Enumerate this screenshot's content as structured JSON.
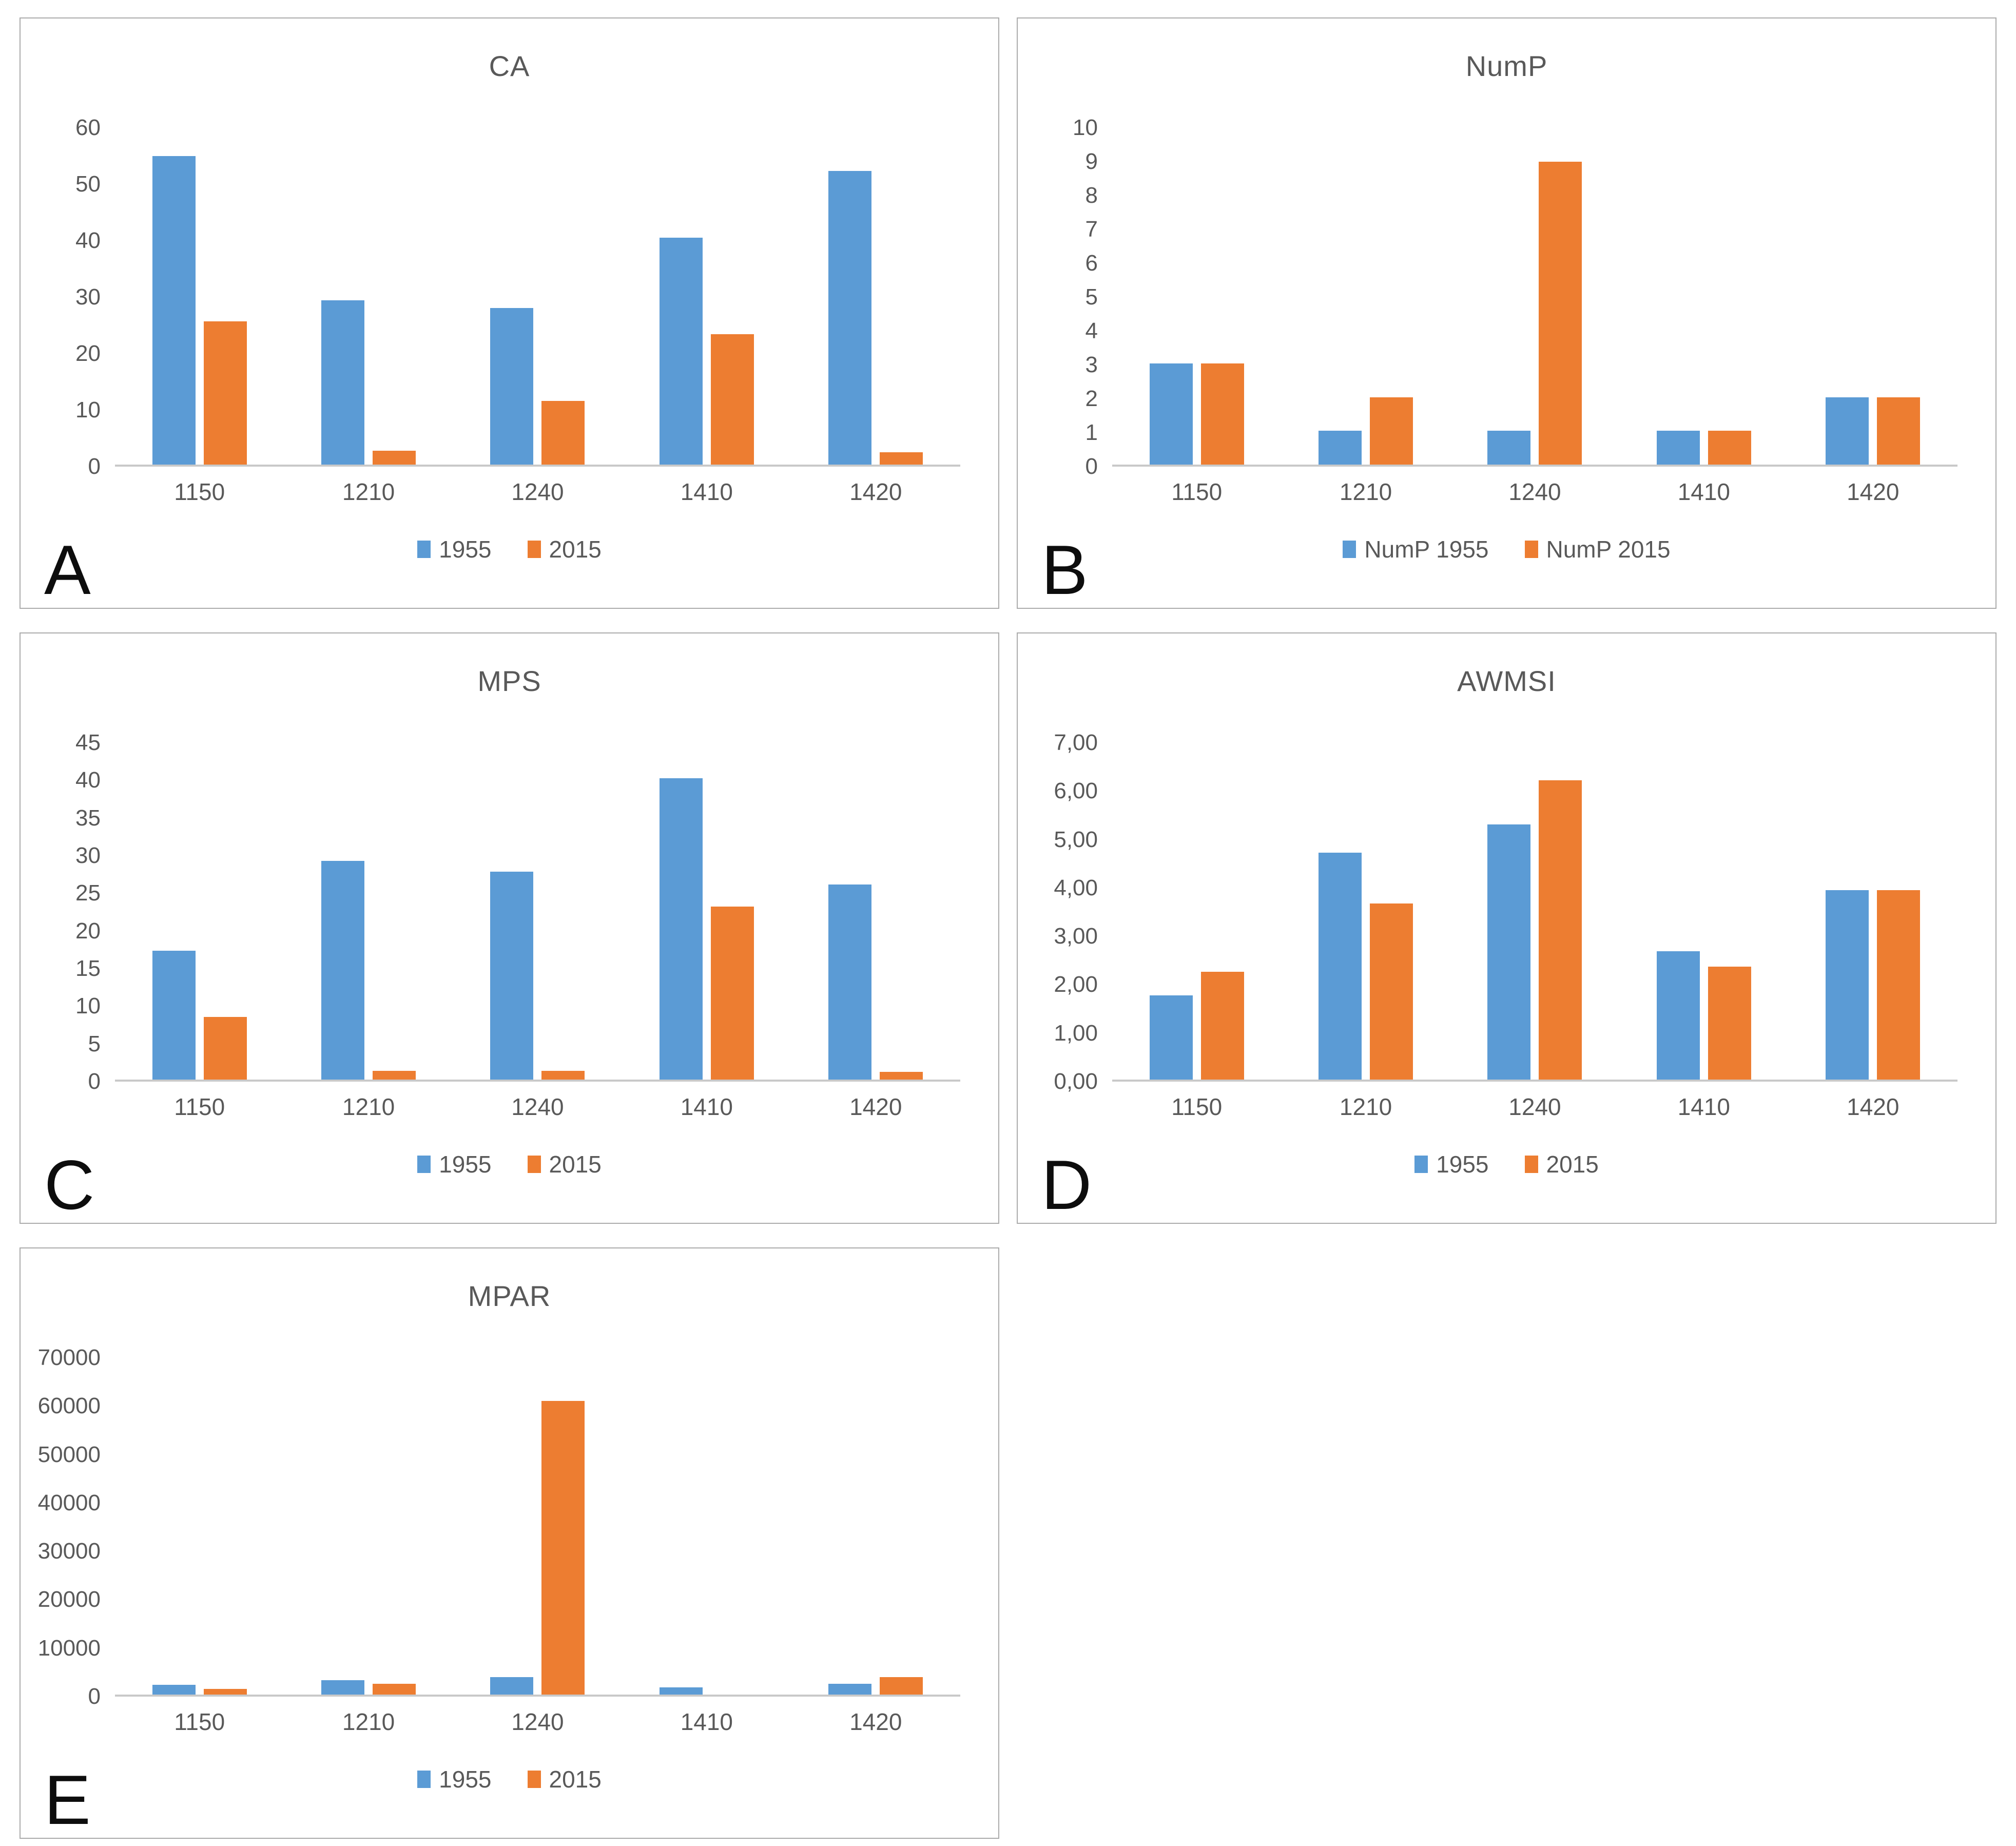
{
  "colors": {
    "series_1955": "#5B9BD5",
    "series_2015": "#ED7D31",
    "axis_text": "#595959",
    "axis_line": "#c9c9c9",
    "panel_border": "#ababab",
    "panel_letter": "#0d0d0d"
  },
  "chart_data": [
    {
      "type": "bar",
      "panel_label": "A",
      "title": "CA",
      "categories": [
        "1150",
        "1210",
        "1240",
        "1410",
        "1420"
      ],
      "series": [
        {
          "name": "1955",
          "color": "#5B9BD5",
          "values": [
            55,
            29.3,
            27.9,
            40.4,
            52.3
          ]
        },
        {
          "name": "2015",
          "color": "#ED7D31",
          "values": [
            25.5,
            2.5,
            11.3,
            23.2,
            2.2
          ]
        }
      ],
      "legend": [
        "1955",
        "2015"
      ],
      "legend_position": "bottom",
      "grid": false,
      "ylim": [
        0,
        60
      ],
      "ytick_values": [
        0,
        10,
        20,
        30,
        40,
        50,
        60
      ],
      "ytick_labels": [
        "0",
        "10",
        "20",
        "30",
        "40",
        "50",
        "60"
      ],
      "xlabel": "",
      "ylabel": ""
    },
    {
      "type": "bar",
      "panel_label": "B",
      "title": "NumP",
      "categories": [
        "1150",
        "1210",
        "1240",
        "1410",
        "1420"
      ],
      "series": [
        {
          "name": "NumP 1955",
          "color": "#5B9BD5",
          "values": [
            3,
            1,
            1,
            1,
            2
          ]
        },
        {
          "name": "NumP 2015",
          "color": "#ED7D31",
          "values": [
            3,
            2,
            9,
            1,
            2
          ]
        }
      ],
      "legend": [
        "NumP 1955",
        "NumP 2015"
      ],
      "legend_position": "bottom",
      "grid": false,
      "ylim": [
        0,
        10
      ],
      "ytick_values": [
        0,
        1,
        2,
        3,
        4,
        5,
        6,
        7,
        8,
        9,
        10
      ],
      "ytick_labels": [
        "0",
        "1",
        "2",
        "3",
        "4",
        "5",
        "6",
        "7",
        "8",
        "9",
        "10"
      ],
      "xlabel": "",
      "ylabel": ""
    },
    {
      "type": "bar",
      "panel_label": "C",
      "title": "MPS",
      "categories": [
        "1150",
        "1210",
        "1240",
        "1410",
        "1420"
      ],
      "series": [
        {
          "name": "1955",
          "color": "#5B9BD5",
          "values": [
            17.2,
            29.2,
            27.8,
            40.3,
            26.1
          ]
        },
        {
          "name": "2015",
          "color": "#ED7D31",
          "values": [
            8.4,
            1.2,
            1.2,
            23.1,
            1.0
          ]
        }
      ],
      "legend": [
        "1955",
        "2015"
      ],
      "legend_position": "bottom",
      "grid": false,
      "ylim": [
        0,
        45
      ],
      "ytick_values": [
        0,
        5,
        10,
        15,
        20,
        25,
        30,
        35,
        40,
        45
      ],
      "ytick_labels": [
        "0",
        "5",
        "10",
        "15",
        "20",
        "25",
        "30",
        "35",
        "40",
        "45"
      ],
      "xlabel": "",
      "ylabel": ""
    },
    {
      "type": "bar",
      "panel_label": "D",
      "title": "AWMSI",
      "categories": [
        "1150",
        "1210",
        "1240",
        "1410",
        "1420"
      ],
      "series": [
        {
          "name": "1955",
          "color": "#5B9BD5",
          "values": [
            1.75,
            4.72,
            5.3,
            2.67,
            3.94
          ]
        },
        {
          "name": "2015",
          "color": "#ED7D31",
          "values": [
            2.24,
            3.66,
            6.22,
            2.35,
            3.94
          ]
        }
      ],
      "legend": [
        "1955",
        "2015"
      ],
      "legend_position": "bottom",
      "grid": false,
      "ylim": [
        0,
        7
      ],
      "ytick_values": [
        0,
        1,
        2,
        3,
        4,
        5,
        6,
        7
      ],
      "ytick_labels": [
        "0,00",
        "1,00",
        "2,00",
        "3,00",
        "4,00",
        "5,00",
        "6,00",
        "7,00"
      ],
      "xlabel": "",
      "ylabel": ""
    },
    {
      "type": "bar",
      "panel_label": "E",
      "title": "MPAR",
      "categories": [
        "1150",
        "1210",
        "1240",
        "1410",
        "1420"
      ],
      "series": [
        {
          "name": "1955",
          "color": "#5B9BD5",
          "values": [
            2000,
            3000,
            3600,
            1500,
            2200
          ]
        },
        {
          "name": "2015",
          "color": "#ED7D31",
          "values": [
            1200,
            2200,
            61000,
            0,
            3600
          ]
        }
      ],
      "legend": [
        "1955",
        "2015"
      ],
      "legend_position": "bottom",
      "grid": false,
      "ylim": [
        0,
        70000
      ],
      "ytick_values": [
        0,
        10000,
        20000,
        30000,
        40000,
        50000,
        60000,
        70000
      ],
      "ytick_labels": [
        "0",
        "10000",
        "20000",
        "30000",
        "40000",
        "50000",
        "60000",
        "70000"
      ],
      "xlabel": "",
      "ylabel": ""
    }
  ]
}
